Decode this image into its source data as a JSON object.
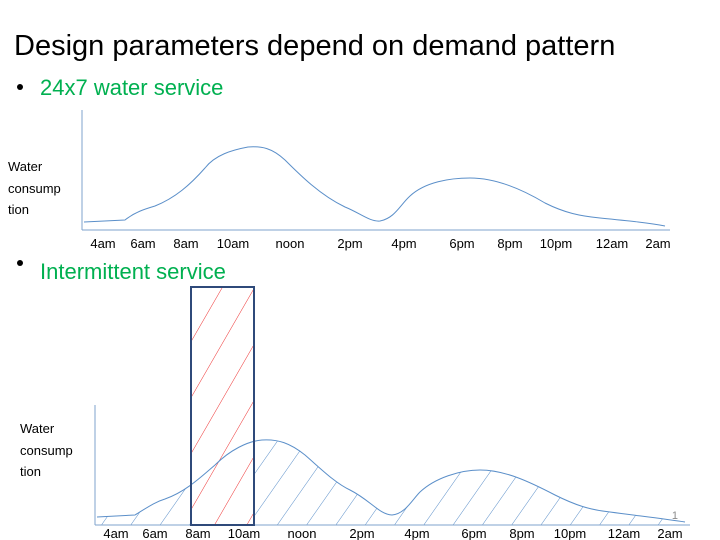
{
  "title": "Design parameters depend on demand pattern",
  "sections": [
    {
      "bullet": "24x7 water service",
      "y_label_lines": [
        "Water",
        "consump",
        "tion"
      ],
      "x_labels": [
        "4am",
        "6am",
        "8am",
        "10am",
        "noon",
        "2pm",
        "4pm",
        "6pm",
        "8pm",
        "10pm",
        "12am",
        "2am"
      ]
    },
    {
      "bullet": "Intermittent service",
      "y_label_lines": [
        "Water",
        "consump",
        "tion"
      ],
      "x_labels": [
        "4am",
        "6am",
        "8am",
        "10am",
        "noon",
        "2pm",
        "4pm",
        "6pm",
        "8pm",
        "10pm",
        "12am",
        "2am"
      ]
    }
  ],
  "slide_number": "1"
}
